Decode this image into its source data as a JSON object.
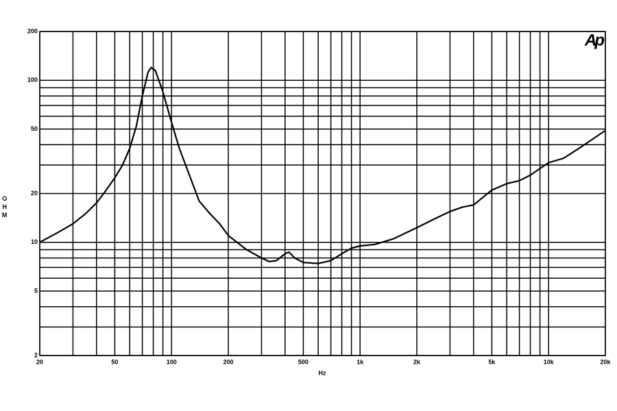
{
  "chart_data": {
    "type": "line",
    "xlabel": "Hz",
    "ylabel": "OHM",
    "logo": "Ap",
    "log_x": true,
    "log_y": true,
    "grid": true,
    "color": "#000000",
    "xlim": [
      20,
      20000
    ],
    "ylim": [
      2,
      200
    ],
    "xticks": [
      20,
      50,
      100,
      200,
      500,
      {
        "value": 1000,
        "label": "1k"
      },
      {
        "value": 2000,
        "label": "2k"
      },
      {
        "value": 5000,
        "label": "5k"
      },
      {
        "value": 10000,
        "label": "10k"
      },
      {
        "value": 20000,
        "label": "20k"
      }
    ],
    "yticks": [
      2,
      5,
      10,
      20,
      50,
      100,
      200
    ],
    "x_minor_grid": [
      30,
      40,
      60,
      70,
      80,
      90,
      300,
      400,
      600,
      700,
      800,
      900,
      3000,
      4000,
      6000,
      7000,
      8000,
      9000
    ],
    "y_minor_grid": [
      3,
      4,
      6,
      7,
      8,
      9,
      30,
      40,
      60,
      70,
      80,
      90
    ],
    "x": [
      20,
      25,
      30,
      35,
      40,
      45,
      50,
      55,
      60,
      65,
      70,
      75,
      78,
      82,
      90,
      100,
      110,
      120,
      140,
      160,
      180,
      200,
      250,
      300,
      330,
      360,
      400,
      420,
      450,
      500,
      600,
      700,
      800,
      900,
      1000,
      1200,
      1500,
      2000,
      2500,
      3000,
      3500,
      4000,
      5000,
      6000,
      7000,
      8000,
      10000,
      12000,
      15000,
      20000
    ],
    "values": [
      10,
      11.5,
      13,
      15,
      17.5,
      21,
      25,
      30,
      38,
      52,
      80,
      112,
      120,
      115,
      85,
      55,
      38,
      29,
      18,
      15,
      13,
      11,
      9,
      8,
      7.6,
      7.7,
      8.5,
      8.7,
      8,
      7.5,
      7.4,
      7.7,
      8.5,
      9.2,
      9.5,
      9.7,
      10.5,
      12.3,
      14,
      15.5,
      16.5,
      17,
      21,
      23,
      24,
      26,
      31,
      33,
      39,
      49
    ]
  }
}
